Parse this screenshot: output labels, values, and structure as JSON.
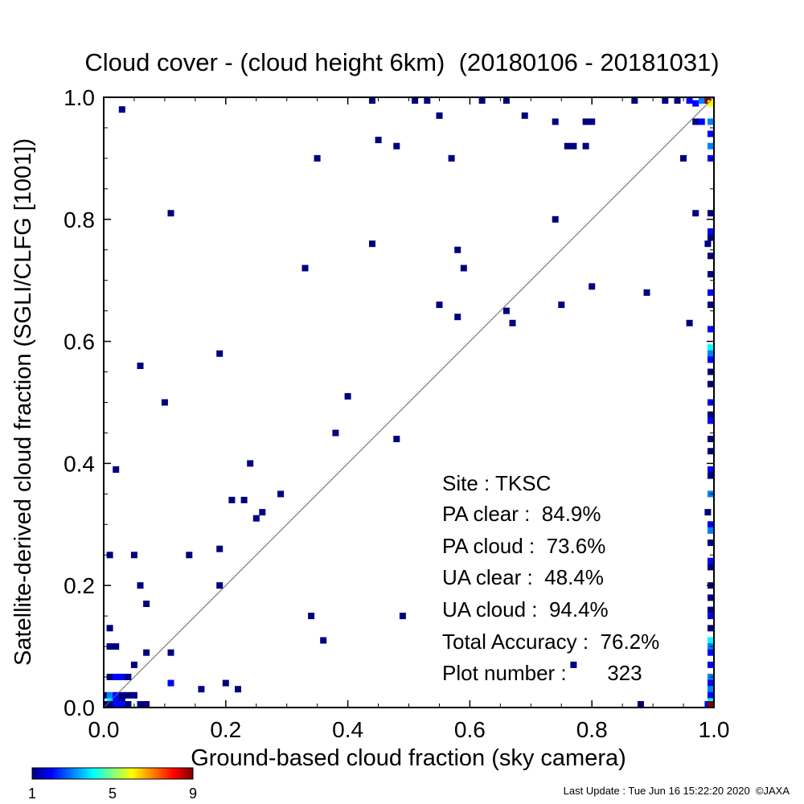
{
  "chart_data": {
    "type": "heatmap",
    "title": "Cloud cover - (cloud height 6km)  (20180106 - 20181031)",
    "xlabel": "Ground-based cloud fraction (sky camera)",
    "ylabel": "Satellite-derived cloud fraction (SGLI/CLFG [1001])",
    "xlim": [
      0,
      1
    ],
    "ylim": [
      0,
      1
    ],
    "x_ticks": [
      "0.0",
      "0.2",
      "0.4",
      "0.6",
      "0.8",
      "1.0"
    ],
    "y_ticks": [
      "0.0",
      "0.2",
      "0.4",
      "0.6",
      "0.8",
      "1.0"
    ],
    "diagonal_line": true,
    "grid": false,
    "colorbar": {
      "min": 1,
      "max": 9,
      "ticks": [
        "1",
        "5",
        "9"
      ],
      "colormap": [
        "#00007f",
        "#0000ff",
        "#00ffff",
        "#ffff00",
        "#ff0000",
        "#7f0000"
      ]
    },
    "stats_box": {
      "site": "Site : TKSC",
      "pa_clear": "PA clear :  84.9%",
      "pa_cloud": "PA cloud :  73.6%",
      "ua_clear": "UA clear :  48.4%",
      "ua_cloud": "UA cloud :  94.4%",
      "total_accuracy": "Total Accuracy :  76.2%",
      "plot_number": "Plot number :       323"
    },
    "points": [
      [
        0.03,
        0.98,
        1
      ],
      [
        0.44,
        1.0,
        1
      ],
      [
        0.51,
        1.0,
        1
      ],
      [
        0.53,
        1.0,
        1
      ],
      [
        0.62,
        1.0,
        1
      ],
      [
        0.66,
        1.0,
        1
      ],
      [
        0.87,
        1.0,
        1
      ],
      [
        0.92,
        1.0,
        1
      ],
      [
        0.94,
        1.0,
        1
      ],
      [
        0.96,
        1.0,
        2
      ],
      [
        0.97,
        0.99,
        2
      ],
      [
        0.98,
        1.0,
        3
      ],
      [
        0.99,
        1.0,
        9
      ],
      [
        1.0,
        0.99,
        6
      ],
      [
        0.55,
        0.97,
        1
      ],
      [
        0.69,
        0.97,
        1
      ],
      [
        0.74,
        0.96,
        1
      ],
      [
        0.79,
        0.96,
        1
      ],
      [
        0.8,
        0.96,
        1
      ],
      [
        0.97,
        0.96,
        1
      ],
      [
        0.98,
        0.96,
        2
      ],
      [
        1.0,
        0.96,
        3
      ],
      [
        1.0,
        0.94,
        2
      ],
      [
        1.0,
        0.92,
        3
      ],
      [
        1.0,
        0.9,
        2
      ],
      [
        0.45,
        0.93,
        1
      ],
      [
        0.48,
        0.92,
        1
      ],
      [
        0.76,
        0.92,
        1
      ],
      [
        0.77,
        0.92,
        1
      ],
      [
        0.79,
        0.92,
        1
      ],
      [
        0.35,
        0.9,
        1
      ],
      [
        0.57,
        0.9,
        1
      ],
      [
        0.95,
        0.9,
        1
      ],
      [
        0.11,
        0.81,
        1
      ],
      [
        0.97,
        0.81,
        1
      ],
      [
        1.0,
        0.81,
        1
      ],
      [
        0.74,
        0.8,
        1
      ],
      [
        1.0,
        0.78,
        2
      ],
      [
        1.0,
        0.77,
        1
      ],
      [
        0.99,
        0.76,
        1
      ],
      [
        1.0,
        0.74,
        1
      ],
      [
        0.44,
        0.76,
        1
      ],
      [
        0.58,
        0.75,
        1
      ],
      [
        0.33,
        0.72,
        1
      ],
      [
        0.59,
        0.72,
        1
      ],
      [
        1.0,
        0.71,
        1
      ],
      [
        0.8,
        0.69,
        1
      ],
      [
        0.89,
        0.68,
        1
      ],
      [
        1.0,
        0.68,
        2
      ],
      [
        0.55,
        0.66,
        1
      ],
      [
        0.75,
        0.66,
        1
      ],
      [
        1.0,
        0.66,
        1
      ],
      [
        0.66,
        0.65,
        1
      ],
      [
        0.58,
        0.64,
        1
      ],
      [
        0.67,
        0.63,
        1
      ],
      [
        0.96,
        0.63,
        1
      ],
      [
        1.0,
        0.62,
        2
      ],
      [
        0.19,
        0.58,
        1
      ],
      [
        1.0,
        0.59,
        4
      ],
      [
        1.0,
        0.58,
        3
      ],
      [
        1.0,
        0.57,
        2
      ],
      [
        0.06,
        0.56,
        1
      ],
      [
        1.0,
        0.55,
        1
      ],
      [
        0.4,
        0.51,
        1
      ],
      [
        0.1,
        0.5,
        1
      ],
      [
        1.0,
        0.53,
        1
      ],
      [
        1.0,
        0.5,
        2
      ],
      [
        1.0,
        0.48,
        1
      ],
      [
        1.0,
        0.47,
        2
      ],
      [
        0.38,
        0.45,
        1
      ],
      [
        0.48,
        0.44,
        1
      ],
      [
        1.0,
        0.44,
        1
      ],
      [
        1.0,
        0.42,
        1
      ],
      [
        0.24,
        0.4,
        1
      ],
      [
        1.0,
        0.39,
        2
      ],
      [
        1.0,
        0.38,
        1
      ],
      [
        0.02,
        0.39,
        1
      ],
      [
        1.0,
        0.35,
        3
      ],
      [
        0.29,
        0.35,
        1
      ],
      [
        0.21,
        0.34,
        1
      ],
      [
        0.23,
        0.34,
        1
      ],
      [
        0.99,
        0.32,
        1
      ],
      [
        0.26,
        0.32,
        1
      ],
      [
        0.25,
        0.31,
        1
      ],
      [
        1.0,
        0.3,
        2
      ],
      [
        1.0,
        0.29,
        3
      ],
      [
        1.0,
        0.27,
        1
      ],
      [
        0.01,
        0.25,
        1
      ],
      [
        0.05,
        0.25,
        1
      ],
      [
        0.14,
        0.25,
        1
      ],
      [
        0.19,
        0.26,
        1
      ],
      [
        1.0,
        0.24,
        2
      ],
      [
        1.0,
        0.23,
        1
      ],
      [
        0.06,
        0.2,
        1
      ],
      [
        0.19,
        0.2,
        1
      ],
      [
        1.0,
        0.2,
        1
      ],
      [
        0.07,
        0.17,
        1
      ],
      [
        1.0,
        0.18,
        1
      ],
      [
        1.0,
        0.16,
        1
      ],
      [
        1.0,
        0.15,
        2
      ],
      [
        0.34,
        0.15,
        1
      ],
      [
        0.49,
        0.15,
        1
      ],
      [
        0.01,
        0.13,
        1
      ],
      [
        1.0,
        0.13,
        1
      ],
      [
        0.36,
        0.11,
        1
      ],
      [
        0.01,
        0.1,
        1
      ],
      [
        0.02,
        0.1,
        1
      ],
      [
        0.07,
        0.09,
        1
      ],
      [
        0.11,
        0.09,
        1
      ],
      [
        1.0,
        0.11,
        4
      ],
      [
        1.0,
        0.1,
        3
      ],
      [
        1.0,
        0.09,
        2
      ],
      [
        0.77,
        0.07,
        1
      ],
      [
        0.05,
        0.07,
        1
      ],
      [
        1.0,
        0.07,
        2
      ],
      [
        0.01,
        0.05,
        1
      ],
      [
        0.02,
        0.05,
        2
      ],
      [
        0.03,
        0.05,
        2
      ],
      [
        0.04,
        0.05,
        1
      ],
      [
        0.11,
        0.04,
        2
      ],
      [
        0.2,
        0.04,
        1
      ],
      [
        0.16,
        0.03,
        1
      ],
      [
        0.22,
        0.03,
        1
      ],
      [
        1.0,
        0.05,
        3
      ],
      [
        1.0,
        0.04,
        2
      ],
      [
        0.0,
        0.02,
        1
      ],
      [
        0.01,
        0.02,
        3
      ],
      [
        0.02,
        0.02,
        2
      ],
      [
        0.03,
        0.02,
        1
      ],
      [
        0.04,
        0.02,
        1
      ],
      [
        0.05,
        0.02,
        1
      ],
      [
        0.01,
        0.01,
        4
      ],
      [
        0.02,
        0.01,
        2
      ],
      [
        0.03,
        0.01,
        1
      ],
      [
        1.0,
        0.03,
        3
      ],
      [
        1.0,
        0.02,
        2
      ],
      [
        1.0,
        0.01,
        4
      ],
      [
        0.0,
        0.0,
        1
      ],
      [
        0.01,
        0.0,
        1
      ],
      [
        0.02,
        0.0,
        2
      ],
      [
        0.03,
        0.0,
        2
      ],
      [
        0.04,
        0.0,
        1
      ],
      [
        0.06,
        0.0,
        1
      ],
      [
        0.07,
        0.0,
        1
      ],
      [
        0.88,
        0.0,
        1
      ],
      [
        0.99,
        0.0,
        2
      ],
      [
        1.0,
        0.0,
        9
      ]
    ]
  },
  "footer": {
    "last_update": "Last Update : Tue Jun 16 15:22:20 2020  ©JAXA"
  }
}
